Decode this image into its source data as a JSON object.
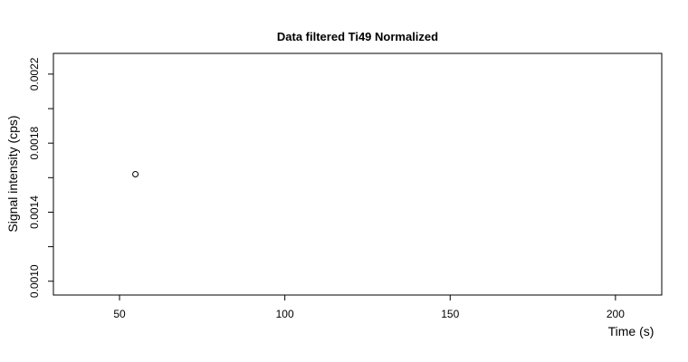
{
  "chart_data": {
    "type": "scatter",
    "title": "Data filtered Ti49 Normalized",
    "xlabel": "Time (s)",
    "ylabel": "Signal intensity (cps)",
    "xlim": [
      30,
      214
    ],
    "ylim": [
      0.00092,
      0.00232
    ],
    "x_ticks": [
      50,
      100,
      150,
      200
    ],
    "x_tick_labels": [
      "50",
      "100",
      "150",
      "200"
    ],
    "y_ticks": [
      0.001,
      0.0012,
      0.0014,
      0.0016,
      0.0018,
      0.002,
      0.0022
    ],
    "y_tick_labels": [
      "0.0010",
      "",
      "0.0014",
      "",
      "0.0018",
      "",
      "0.0022"
    ],
    "points": [
      {
        "x": 54.8,
        "y": 0.00162
      }
    ],
    "marker": "open-circle",
    "grid": false,
    "legend": "none"
  }
}
